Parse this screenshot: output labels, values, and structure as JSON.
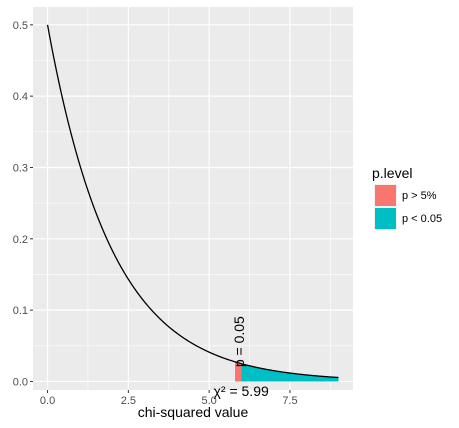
{
  "chart_data": {
    "type": "area",
    "xlabel": "chi-squared value",
    "ylabel": "",
    "xlim": [
      -0.45,
      9.45
    ],
    "ylim": [
      -0.012,
      0.525
    ],
    "x_ticks": [
      0.0,
      2.5,
      5.0,
      7.5
    ],
    "x_tick_labels": [
      "0.0",
      "2.5",
      "5.0",
      "7.5"
    ],
    "y_ticks": [
      0.0,
      0.1,
      0.2,
      0.3,
      0.4,
      0.5
    ],
    "y_tick_labels": [
      "0.0",
      "0.1",
      "0.2",
      "0.3",
      "0.4",
      "0.5"
    ],
    "grid": true,
    "curve": {
      "distribution": "chi-squared",
      "df": 2,
      "x_range": [
        0,
        9
      ]
    },
    "fill_regions": [
      {
        "name": "p > 5%",
        "x_range": [
          5.8,
          5.99
        ],
        "color": "#F8766D"
      },
      {
        "name": "p < 0.05",
        "x_range": [
          5.99,
          9.0
        ],
        "color": "#00BFC4"
      }
    ],
    "annotations": [
      {
        "text": "p = 0.05",
        "x": 5.95,
        "y": 0.02,
        "rotation": -90
      },
      {
        "text": "χ² = 5.99",
        "x": 5.99,
        "y": -0.008
      }
    ],
    "legend": {
      "title": "p.level",
      "placement": "right",
      "entries": [
        {
          "label": "p > 5%",
          "color": "#F8766D"
        },
        {
          "label": "p < 0.05",
          "color": "#00BFC4"
        }
      ]
    },
    "panel_color": "#EBEBEB",
    "curve_color": "#000000"
  }
}
